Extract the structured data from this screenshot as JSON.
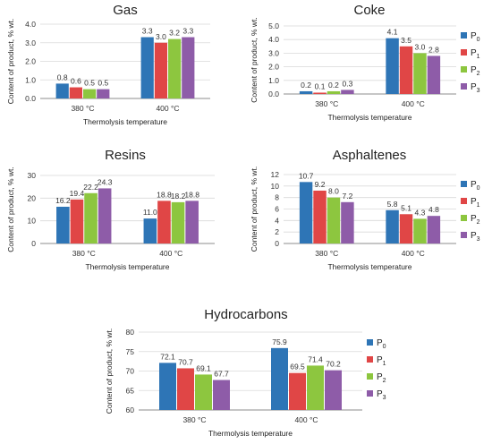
{
  "colors": {
    "P0": "#2E75B6",
    "P1": "#E04646",
    "P2": "#8DC63F",
    "P3": "#8E5CA8",
    "grid": "#d9d9d9",
    "axis": "#8c8c8c"
  },
  "legend_entries": [
    {
      "base": "P",
      "sub": "0",
      "color_key": "P0"
    },
    {
      "base": "P",
      "sub": "1",
      "color_key": "P1"
    },
    {
      "base": "P",
      "sub": "2",
      "color_key": "P2"
    },
    {
      "base": "P",
      "sub": "3",
      "color_key": "P3"
    }
  ],
  "chart_data": [
    {
      "type": "bar",
      "title": "Gas",
      "xlabel": "Thermolysis temperature",
      "ylabel": "Content of product, % wt.",
      "categories": [
        "380 °C",
        "400 °C"
      ],
      "ylim": [
        0,
        4.0
      ],
      "yticks": [
        "0.0",
        "1.0",
        "2.0",
        "3.0",
        "4.0"
      ],
      "legend": false,
      "series": [
        {
          "name": "P0",
          "values": [
            0.8,
            3.3
          ],
          "labels": [
            "0.8",
            "3.3"
          ]
        },
        {
          "name": "P1",
          "values": [
            0.6,
            3.0
          ],
          "labels": [
            "0.6",
            "3.0"
          ]
        },
        {
          "name": "P2",
          "values": [
            0.5,
            3.2
          ],
          "labels": [
            "0.5",
            "3.2"
          ]
        },
        {
          "name": "P3",
          "values": [
            0.5,
            3.3
          ],
          "labels": [
            "0.5",
            "3.3"
          ]
        }
      ]
    },
    {
      "type": "bar",
      "title": "Coke",
      "xlabel": "Thermolysis temperature",
      "ylabel": "Content of product, % wt.",
      "categories": [
        "380 °C",
        "400 °C"
      ],
      "ylim": [
        0,
        5.0
      ],
      "yticks": [
        "0.0",
        "1.0",
        "2.0",
        "3.0",
        "4.0",
        "5.0"
      ],
      "legend": true,
      "series": [
        {
          "name": "P0",
          "values": [
            0.2,
            4.1
          ],
          "labels": [
            "0.2",
            "4.1"
          ]
        },
        {
          "name": "P1",
          "values": [
            0.1,
            3.5
          ],
          "labels": [
            "0.1",
            "3.5"
          ]
        },
        {
          "name": "P2",
          "values": [
            0.2,
            3.0
          ],
          "labels": [
            "0.2",
            "3.0"
          ]
        },
        {
          "name": "P3",
          "values": [
            0.3,
            2.8
          ],
          "labels": [
            "0.3",
            "2.8"
          ]
        }
      ]
    },
    {
      "type": "bar",
      "title": "Resins",
      "xlabel": "Thermolysis temperature",
      "ylabel": "Content of product, % wt.",
      "categories": [
        "380 °C",
        "400 °C"
      ],
      "ylim": [
        0,
        30
      ],
      "yticks": [
        "0",
        "10",
        "20",
        "30"
      ],
      "legend": false,
      "series": [
        {
          "name": "P0",
          "values": [
            16.2,
            11.0
          ],
          "labels": [
            "16.2",
            "11.0"
          ]
        },
        {
          "name": "P1",
          "values": [
            19.4,
            18.8
          ],
          "labels": [
            "19.4",
            "18.8"
          ]
        },
        {
          "name": "P2",
          "values": [
            22.2,
            18.2
          ],
          "labels": [
            "22.2",
            "18.2"
          ]
        },
        {
          "name": "P3",
          "values": [
            24.3,
            18.8
          ],
          "labels": [
            "24.3",
            "18.8"
          ]
        }
      ]
    },
    {
      "type": "bar",
      "title": "Asphaltenes",
      "xlabel": "Thermolysis temperature",
      "ylabel": "Content of product, % wt.",
      "categories": [
        "380 °C",
        "400 °C"
      ],
      "ylim": [
        0,
        12
      ],
      "yticks": [
        "0",
        "2",
        "4",
        "6",
        "8",
        "10",
        "12"
      ],
      "legend": true,
      "series": [
        {
          "name": "P0",
          "values": [
            10.7,
            5.8
          ],
          "labels": [
            "10.7",
            "5.8"
          ]
        },
        {
          "name": "P1",
          "values": [
            9.2,
            5.1
          ],
          "labels": [
            "9.2",
            "5.1"
          ]
        },
        {
          "name": "P2",
          "values": [
            8.0,
            4.3
          ],
          "labels": [
            "8.0",
            "4.3"
          ]
        },
        {
          "name": "P3",
          "values": [
            7.2,
            4.8
          ],
          "labels": [
            "7.2",
            "4.8"
          ]
        }
      ]
    },
    {
      "type": "bar",
      "title": "Hydrocarbons",
      "xlabel": "Thermolysis temperature",
      "ylabel": "Content of product, % wt.",
      "categories": [
        "380 °C",
        "400 °C"
      ],
      "ylim": [
        60,
        80
      ],
      "yticks": [
        "60",
        "65",
        "70",
        "75",
        "80"
      ],
      "legend": true,
      "series": [
        {
          "name": "P0",
          "values": [
            72.1,
            75.9
          ],
          "labels": [
            "72.1",
            "75.9"
          ]
        },
        {
          "name": "P1",
          "values": [
            70.7,
            69.5
          ],
          "labels": [
            "70.7",
            "69.5"
          ]
        },
        {
          "name": "P2",
          "values": [
            69.1,
            71.4
          ],
          "labels": [
            "69.1",
            "71.4"
          ]
        },
        {
          "name": "P3",
          "values": [
            67.7,
            70.2
          ],
          "labels": [
            "67.7",
            "70.2"
          ]
        }
      ]
    }
  ]
}
